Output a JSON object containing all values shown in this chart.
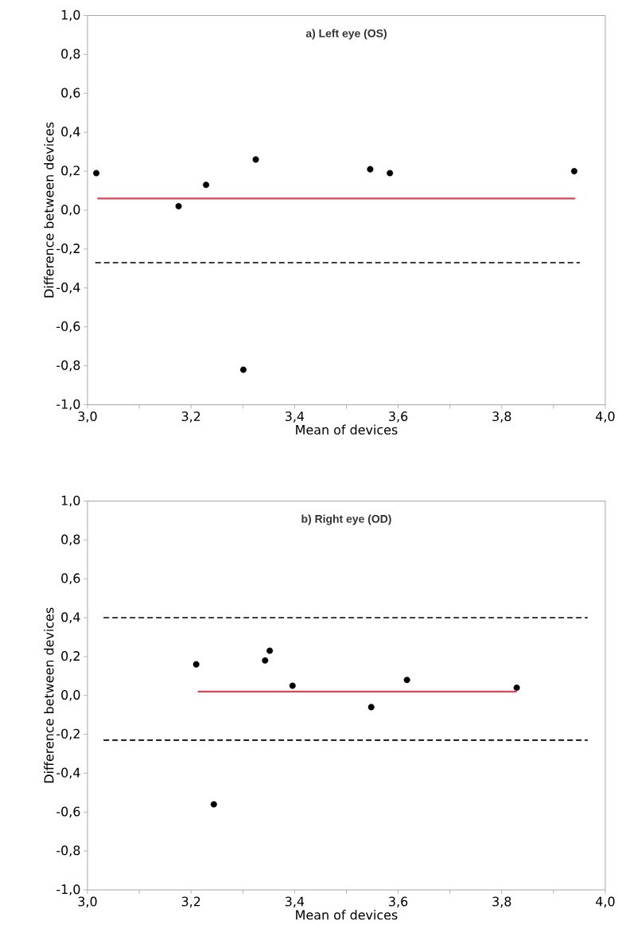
{
  "chart_data": [
    {
      "type": "scatter",
      "title": "a) Left eye (OS)",
      "xlabel": "Mean of devices",
      "ylabel": "Difference between devices",
      "series": [
        {
          "color": "#000000",
          "marker": "circle",
          "x": [
            3.017,
            3.176,
            3.229,
            3.301,
            3.325,
            3.546,
            3.584,
            3.94
          ],
          "values": [
            0.19,
            0.02,
            0.13,
            -0.82,
            0.26,
            0.21,
            0.19,
            0.2
          ]
        },
        {
          "type": "line",
          "color": "#d9475a",
          "marker": "none",
          "line_style": "solid",
          "x": [
            3.019,
            3.942
          ],
          "values": [
            0.06,
            0.06
          ]
        },
        {
          "type": "line",
          "color": "#000000",
          "marker": "none",
          "line_style": "dashed",
          "x": [
            3.015,
            3.951
          ],
          "values": [
            -0.27,
            -0.27
          ]
        }
      ],
      "xlim": [
        3.0,
        4.0
      ],
      "ylim": [
        -1.0,
        1.0
      ],
      "xticks": [
        {
          "value": 3.0,
          "label": "3,0"
        },
        {
          "value": 3.1,
          "label": null
        },
        {
          "value": 3.2,
          "label": "3,2"
        },
        {
          "value": 3.3,
          "label": null
        },
        {
          "value": 3.4,
          "label": "3,4"
        },
        {
          "value": 3.5,
          "label": null
        },
        {
          "value": 3.6,
          "label": "3,6"
        },
        {
          "value": 3.7,
          "label": null
        },
        {
          "value": 3.8,
          "label": "3,8"
        },
        {
          "value": 3.9,
          "label": null
        },
        {
          "value": 4.0,
          "label": "4,0"
        }
      ],
      "yticks": [
        {
          "value": -1.0,
          "label": "-1,0"
        },
        {
          "value": -0.8,
          "label": "-0,8"
        },
        {
          "value": -0.6,
          "label": "-0,6"
        },
        {
          "value": -0.4,
          "label": "-0,4"
        },
        {
          "value": -0.2,
          "label": "-0,2"
        },
        {
          "value": 0.0,
          "label": "0,0"
        },
        {
          "value": 0.2,
          "label": "0,2"
        },
        {
          "value": 0.4,
          "label": "0,4"
        },
        {
          "value": 0.6,
          "label": "0,6"
        },
        {
          "value": 0.8,
          "label": "0,8"
        },
        {
          "value": 1.0,
          "label": "1,0"
        }
      ]
    },
    {
      "type": "scatter",
      "title": "b) Right eye (OD)",
      "xlabel": "Mean of devices",
      "ylabel": "Difference between devices",
      "series": [
        {
          "color": "#000000",
          "marker": "circle",
          "x": [
            3.21,
            3.244,
            3.343,
            3.352,
            3.396,
            3.548,
            3.617,
            3.829
          ],
          "values": [
            0.16,
            -0.56,
            0.18,
            0.23,
            0.05,
            -0.06,
            0.08,
            0.04
          ]
        },
        {
          "type": "line",
          "color": "#d9475a",
          "marker": "none",
          "line_style": "solid",
          "x": [
            3.213,
            3.829
          ],
          "values": [
            0.02,
            0.02
          ]
        },
        {
          "type": "line",
          "color": "#000000",
          "marker": "none",
          "line_style": "dashed",
          "x": [
            3.031,
            3.966
          ],
          "values": [
            0.4,
            0.4
          ]
        },
        {
          "type": "line",
          "color": "#000000",
          "marker": "none",
          "line_style": "dashed",
          "x": [
            3.031,
            3.966
          ],
          "values": [
            -0.23,
            -0.23
          ]
        }
      ],
      "xlim": [
        3.0,
        4.0
      ],
      "ylim": [
        -1.0,
        1.0
      ],
      "xticks": [
        {
          "value": 3.0,
          "label": "3,0"
        },
        {
          "value": 3.1,
          "label": null
        },
        {
          "value": 3.2,
          "label": "3,2"
        },
        {
          "value": 3.3,
          "label": null
        },
        {
          "value": 3.4,
          "label": "3,4"
        },
        {
          "value": 3.5,
          "label": null
        },
        {
          "value": 3.6,
          "label": "3,6"
        },
        {
          "value": 3.7,
          "label": null
        },
        {
          "value": 3.8,
          "label": "3,8"
        },
        {
          "value": 3.9,
          "label": null
        },
        {
          "value": 4.0,
          "label": "4,0"
        }
      ],
      "yticks": [
        {
          "value": -1.0,
          "label": "-1,0"
        },
        {
          "value": -0.8,
          "label": "-0,8"
        },
        {
          "value": -0.6,
          "label": "-0,6"
        },
        {
          "value": -0.4,
          "label": "-0,4"
        },
        {
          "value": -0.2,
          "label": "-0,2"
        },
        {
          "value": 0.0,
          "label": "0,0"
        },
        {
          "value": 0.2,
          "label": "0,2"
        },
        {
          "value": 0.4,
          "label": "0,4"
        },
        {
          "value": 0.6,
          "label": "0,6"
        },
        {
          "value": 0.8,
          "label": "0,8"
        },
        {
          "value": 1.0,
          "label": "1,0"
        }
      ]
    }
  ]
}
